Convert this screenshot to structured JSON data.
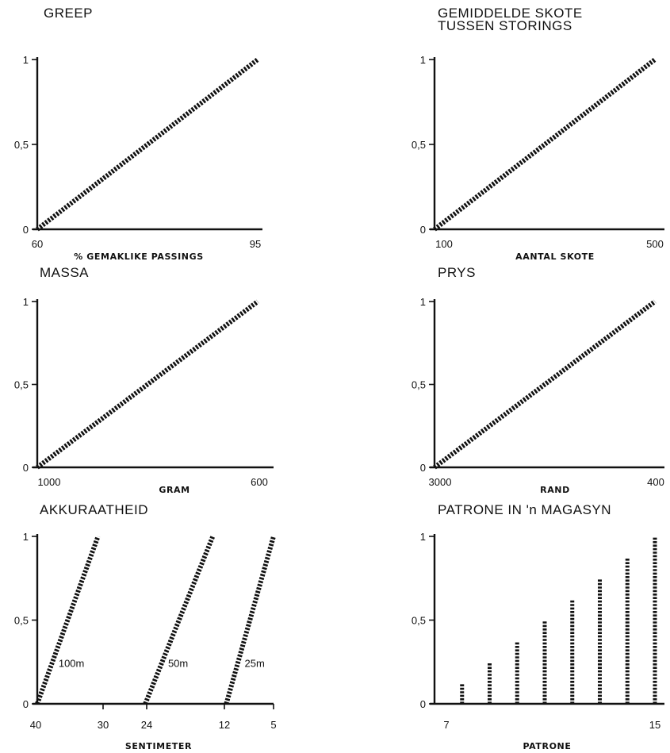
{
  "chart_data": [
    {
      "type": "line",
      "title": "GREEP",
      "xlabel": "% GEMAKLIKE PASSINGS",
      "ylabel": "",
      "x_ticks": [
        "60",
        "95"
      ],
      "y_ticks": [
        "0",
        "0,5",
        "1"
      ],
      "xlim": [
        60,
        95
      ],
      "ylim": [
        0,
        1
      ],
      "series": [
        {
          "x": [
            60,
            95
          ],
          "y": [
            0,
            1
          ]
        }
      ]
    },
    {
      "type": "line",
      "title": "GEMIDDELDE SKOTE\nTUSSEN STORINGS",
      "xlabel": "AANTAL SKOTE",
      "ylabel": "",
      "x_ticks": [
        "100",
        "500"
      ],
      "y_ticks": [
        "0",
        "0,5",
        "1"
      ],
      "xlim": [
        100,
        500
      ],
      "ylim": [
        0,
        1
      ],
      "series": [
        {
          "x": [
            100,
            500
          ],
          "y": [
            0,
            1
          ]
        }
      ]
    },
    {
      "type": "line",
      "title": "MASSA",
      "xlabel": "GRAM",
      "ylabel": "",
      "x_ticks": [
        "1000",
        "600"
      ],
      "y_ticks": [
        "0",
        "0,5",
        "1"
      ],
      "xlim": [
        1000,
        600
      ],
      "ylim": [
        0,
        1
      ],
      "series": [
        {
          "x": [
            1000,
            600
          ],
          "y": [
            0,
            1
          ]
        }
      ]
    },
    {
      "type": "line",
      "title": "PRYS",
      "xlabel": "RAND",
      "ylabel": "",
      "x_ticks": [
        "3000",
        "400"
      ],
      "y_ticks": [
        "0",
        "0,5",
        "1"
      ],
      "xlim": [
        3000,
        400
      ],
      "ylim": [
        0,
        1
      ],
      "series": [
        {
          "x": [
            3000,
            400
          ],
          "y": [
            0,
            1
          ]
        }
      ]
    },
    {
      "type": "line",
      "title": "AKKURAATHEID",
      "xlabel": "SENTIMETER",
      "ylabel": "",
      "x_ticks": [
        "40",
        "30",
        "24",
        "12",
        "5"
      ],
      "y_ticks": [
        "0",
        "0,5",
        "1"
      ],
      "xlim": [
        40,
        5
      ],
      "ylim": [
        0,
        1
      ],
      "series": [
        {
          "name": "100m",
          "x": [
            40,
            31
          ],
          "y": [
            0,
            1
          ]
        },
        {
          "name": "50m",
          "x": [
            24,
            14
          ],
          "y": [
            0,
            1
          ]
        },
        {
          "name": "25m",
          "x": [
            12,
            5
          ],
          "y": [
            0,
            1
          ]
        }
      ]
    },
    {
      "type": "bar",
      "title": "PATRONE  IN 'n MAGASYN",
      "xlabel": "PATRONE",
      "ylabel": "",
      "x_ticks": [
        "7",
        "15"
      ],
      "y_ticks": [
        "0",
        "0,5",
        "1"
      ],
      "xlim": [
        7,
        15
      ],
      "ylim": [
        0,
        1
      ],
      "x": [
        8,
        9,
        10,
        11,
        12,
        13,
        14,
        15
      ],
      "values": [
        0.125,
        0.25,
        0.375,
        0.5,
        0.625,
        0.75,
        0.875,
        1.0
      ]
    }
  ]
}
